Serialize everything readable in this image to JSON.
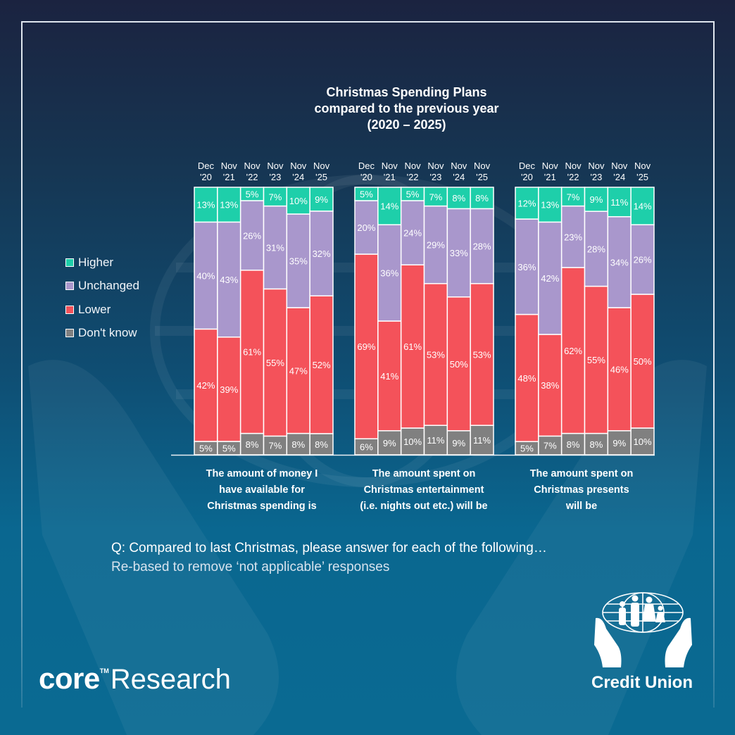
{
  "chart_data": {
    "type": "bar",
    "stacked": true,
    "title": "Christmas Spending Plans\ncompared to the previous year\n(2020 – 2025)",
    "xlabel": "",
    "ylabel": "",
    "ylim": [
      0,
      100
    ],
    "grid": false,
    "legend_position": "left",
    "period_labels": [
      "Dec\n'20",
      "Nov\n'21",
      "Nov\n'22",
      "Nov\n'23",
      "Nov\n'24",
      "Nov\n'25"
    ],
    "series_order_bottom_to_top": [
      "Don't know",
      "Lower",
      "Unchanged",
      "Higher"
    ],
    "series_colors": {
      "Higher": "#1ecfaa",
      "Unchanged": "#a997cc",
      "Lower": "#f4525a",
      "Don't know": "#808080"
    },
    "groups": [
      {
        "category": "The amount of money I\nhave available for\nChristmas spending is",
        "series": [
          {
            "name": "Higher",
            "values": [
              13,
              13,
              5,
              7,
              10,
              9
            ]
          },
          {
            "name": "Unchanged",
            "values": [
              40,
              43,
              26,
              31,
              35,
              32
            ]
          },
          {
            "name": "Lower",
            "values": [
              42,
              39,
              61,
              55,
              47,
              52
            ]
          },
          {
            "name": "Don't know",
            "values": [
              5,
              5,
              8,
              7,
              8,
              8
            ]
          }
        ]
      },
      {
        "category": "The amount spent on\nChristmas entertainment\n(i.e. nights out etc.) will be",
        "series": [
          {
            "name": "Higher",
            "values": [
              5,
              14,
              5,
              7,
              8,
              8
            ]
          },
          {
            "name": "Unchanged",
            "values": [
              20,
              36,
              24,
              29,
              33,
              28
            ]
          },
          {
            "name": "Lower",
            "values": [
              69,
              41,
              61,
              53,
              50,
              53
            ]
          },
          {
            "name": "Don't know",
            "values": [
              6,
              9,
              10,
              11,
              9,
              11
            ]
          }
        ]
      },
      {
        "category": "The amount spent on\nChristmas presents\nwill be",
        "series": [
          {
            "name": "Higher",
            "values": [
              12,
              13,
              7,
              9,
              11,
              14
            ]
          },
          {
            "name": "Unchanged",
            "values": [
              36,
              42,
              23,
              28,
              34,
              26
            ]
          },
          {
            "name": "Lower",
            "values": [
              48,
              38,
              62,
              55,
              46,
              50
            ]
          },
          {
            "name": "Don't know",
            "values": [
              5,
              7,
              8,
              8,
              9,
              10
            ]
          }
        ]
      }
    ],
    "value_suffix": "%"
  },
  "legend": {
    "items": [
      {
        "label": "Higher",
        "color": "#1ecfaa"
      },
      {
        "label": "Unchanged",
        "color": "#a997cc"
      },
      {
        "label": "Lower",
        "color": "#f4525a"
      },
      {
        "label": "Don't know",
        "color": "#808080"
      }
    ]
  },
  "footer": {
    "question": "Q: Compared to last Christmas, please answer for each of the following…",
    "note": "Re-based to remove ‘not applicable’ responses"
  },
  "branding": {
    "core_word": "core",
    "core_tm": "TM",
    "core_research": "Research",
    "credit_union": "Credit Union"
  }
}
